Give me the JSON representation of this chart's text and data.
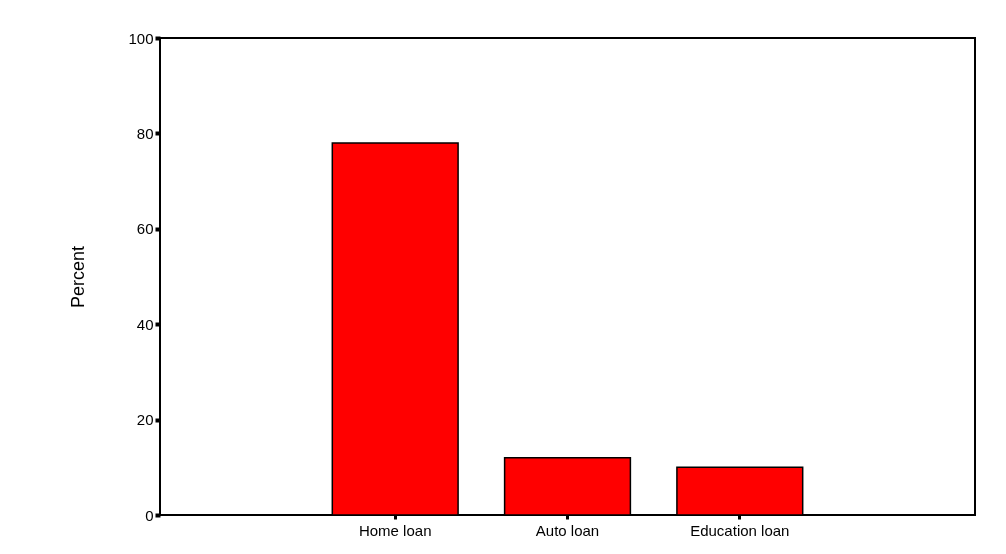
{
  "chart_data": {
    "type": "bar",
    "ylabel": "Percent",
    "categories": [
      "Home loan",
      "Auto loan",
      "Education loan"
    ],
    "values": [
      78,
      12,
      10
    ],
    "color": "#ff0000",
    "ylim": [
      0,
      100
    ],
    "yticks": [
      0,
      20,
      40,
      60,
      80,
      100
    ],
    "grid": false
  }
}
